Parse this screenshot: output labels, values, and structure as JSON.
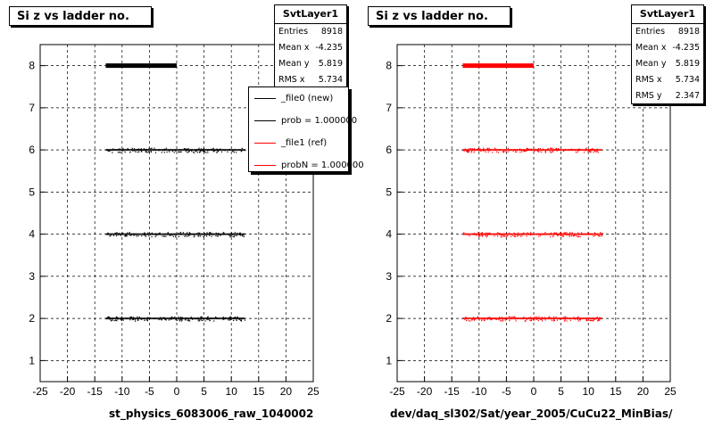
{
  "chart_data": [
    {
      "type": "scatter",
      "title": "Si z vs ladder no.",
      "xlabel": "st_physics_6083006_raw_1040002",
      "ylabel": "",
      "xlim": [
        -25,
        25
      ],
      "ylim": [
        0.5,
        8.5
      ],
      "xticks": [
        -25,
        -20,
        -15,
        -10,
        -5,
        0,
        5,
        10,
        15,
        20,
        25
      ],
      "yticks": [
        1,
        2,
        3,
        4,
        5,
        6,
        7,
        8
      ],
      "grid": true,
      "legend_position": "top-right",
      "series_color": "#000000",
      "bands": [
        {
          "y": 8,
          "x_range": [
            -13,
            0
          ],
          "thick": true
        },
        {
          "y": 6,
          "x_range": [
            -13,
            12.5
          ],
          "thick": false
        },
        {
          "y": 4,
          "x_range": [
            -13,
            12.5
          ],
          "thick": false
        },
        {
          "y": 2,
          "x_range": [
            -13,
            12.5
          ],
          "thick": false
        }
      ],
      "stats": {
        "name": "SvtLayer1",
        "rows": [
          {
            "label": "Entries",
            "value": "8918"
          },
          {
            "label": "Mean x",
            "value": "-4.235"
          },
          {
            "label": "Mean y",
            "value": "5.819"
          },
          {
            "label": "RMS x",
            "value": "5.734"
          }
        ]
      },
      "legend": [
        {
          "label": "_file0 (new)",
          "color": "#000000"
        },
        {
          "label": "prob = 1.000000",
          "color": "#000000"
        },
        {
          "label": "_file1 (ref)",
          "color": "#ff0000"
        },
        {
          "label": "probN = 1.000000",
          "color": "#ff0000"
        }
      ]
    },
    {
      "type": "scatter",
      "title": "Si z vs ladder no.",
      "xlabel": "dev/daq_sl302/Sat/year_2005/CuCu22_MinBias/",
      "ylabel": "",
      "xlim": [
        -25,
        25
      ],
      "ylim": [
        0.5,
        8.5
      ],
      "xticks": [
        -25,
        -20,
        -15,
        -10,
        -5,
        0,
        5,
        10,
        15,
        20,
        25
      ],
      "yticks": [
        1,
        2,
        3,
        4,
        5,
        6,
        7,
        8
      ],
      "grid": true,
      "series_color": "#ff0000",
      "bands": [
        {
          "y": 8,
          "x_range": [
            -13,
            0
          ],
          "thick": true
        },
        {
          "y": 6,
          "x_range": [
            -13,
            12.5
          ],
          "thick": false
        },
        {
          "y": 4,
          "x_range": [
            -13,
            12.5
          ],
          "thick": false
        },
        {
          "y": 2,
          "x_range": [
            -13,
            12.5
          ],
          "thick": false
        }
      ],
      "stats": {
        "name": "SvtLayer1",
        "rows": [
          {
            "label": "Entries",
            "value": "8918"
          },
          {
            "label": "Mean x",
            "value": "-4.235"
          },
          {
            "label": "Mean y",
            "value": "5.819"
          },
          {
            "label": "RMS x",
            "value": "5.734"
          },
          {
            "label": "RMS y",
            "value": "2.347"
          }
        ]
      }
    }
  ]
}
